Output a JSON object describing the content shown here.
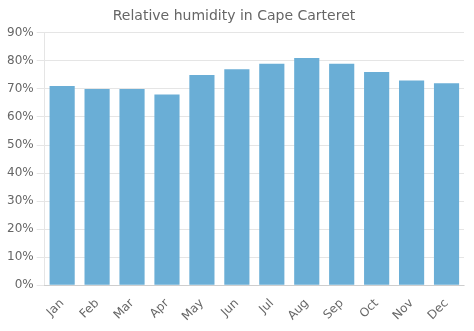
{
  "chart_data": {
    "type": "bar",
    "title": "Relative humidity in Cape Carteret",
    "categories": [
      "Jan",
      "Feb",
      "Mar",
      "Apr",
      "May",
      "Jun",
      "Jul",
      "Aug",
      "Sep",
      "Oct",
      "Nov",
      "Dec"
    ],
    "values": [
      71,
      70,
      70,
      68,
      75,
      77,
      79,
      81,
      79,
      76,
      73,
      72
    ],
    "color": "#6aaed6",
    "ylim": [
      0,
      90
    ],
    "yticks": [
      {
        "value": 0,
        "label": "0%"
      },
      {
        "value": 10,
        "label": "10%"
      },
      {
        "value": 20,
        "label": "20%"
      },
      {
        "value": 30,
        "label": "30%"
      },
      {
        "value": 40,
        "label": "40%"
      },
      {
        "value": 50,
        "label": "50%"
      },
      {
        "value": 60,
        "label": "60%"
      },
      {
        "value": 70,
        "label": "70%"
      },
      {
        "value": 80,
        "label": "80%"
      },
      {
        "value": 90,
        "label": "90%"
      }
    ],
    "grid": true
  }
}
